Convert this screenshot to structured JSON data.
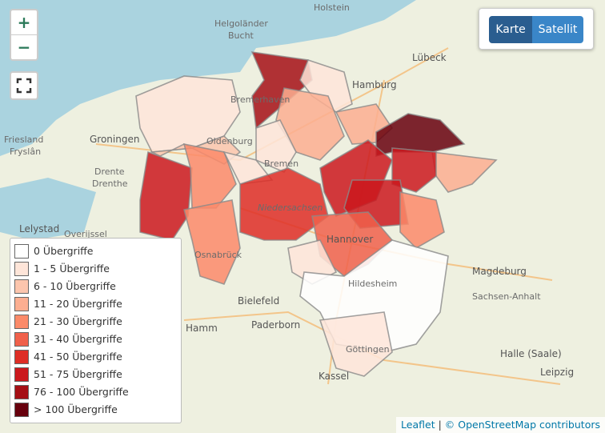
{
  "map": {
    "labels": [
      "Holstein",
      "Helgoländer",
      "Bucht",
      "Lübeck",
      "Hamburg",
      "Groningen",
      "Friesland",
      "Fryslân",
      "Drente",
      "Drenthe",
      "Lelystad",
      "Overijssel",
      "Niedersachsen",
      "Hannover",
      "Magdeburg",
      "Sachsen-Anhalt",
      "Bielefeld",
      "Paderborn",
      "Hamm",
      "Kassel",
      "Halle (Saale)",
      "Leipzig",
      "Hildesheim",
      "Göttingen",
      "Oldenburg",
      "Bremen",
      "Bremerhaven",
      "Osnabrück"
    ]
  },
  "controls": {
    "zoom_in": "+",
    "zoom_out": "−"
  },
  "layers": [
    "Karte",
    "Satellit"
  ],
  "legend": {
    "items": [
      {
        "label": "0 Übergriffe",
        "color": "#ffffff"
      },
      {
        "label": "1 - 5 Übergriffe",
        "color": "#fee5d9"
      },
      {
        "label": "6 - 10 Übergriffe",
        "color": "#fcc5ad"
      },
      {
        "label": "11 - 20 Übergriffe",
        "color": "#fcae91"
      },
      {
        "label": "21 - 30 Übergriffe",
        "color": "#fb8a6a"
      },
      {
        "label": "31 - 40 Übergriffe",
        "color": "#f0604b"
      },
      {
        "label": "41 - 50 Übergriffe",
        "color": "#de2d26"
      },
      {
        "label": "51 - 75 Übergriffe",
        "color": "#cb181d"
      },
      {
        "label": "76 - 100 Übergriffe",
        "color": "#a50f15"
      },
      {
        "label": "> 100 Übergriffe",
        "color": "#67000d"
      }
    ]
  },
  "attribution": {
    "leaflet": "Leaflet",
    "separator": "|",
    "osm": "© OpenStreetMap contributors"
  }
}
